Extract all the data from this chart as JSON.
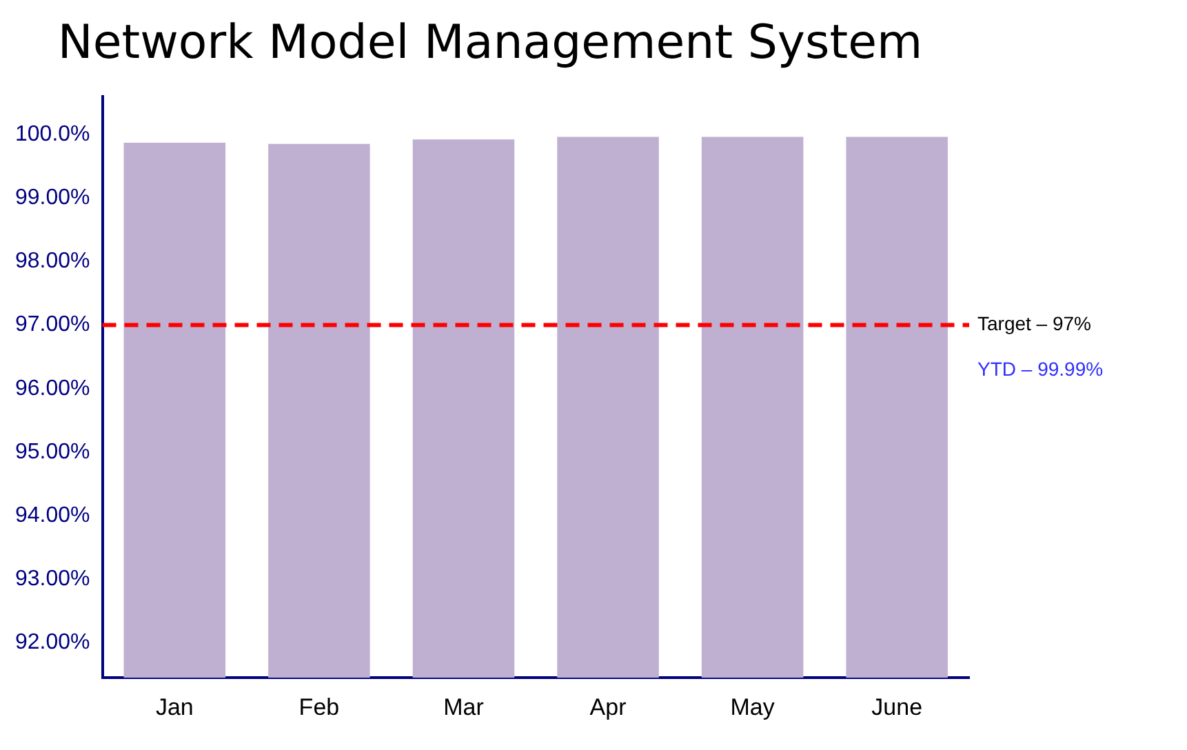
{
  "chart_data": {
    "type": "bar",
    "title": "Network Model Management System",
    "categories": [
      "Jan",
      "Feb",
      "Mar",
      "Apr",
      "May",
      "June"
    ],
    "values": [
      99.87,
      99.85,
      99.92,
      99.96,
      99.96,
      99.96
    ],
    "color": "#bfb0d2",
    "ylim": [
      91.45,
      100.6
    ],
    "yticks": [
      {
        "value": 92,
        "label": "92.00%"
      },
      {
        "value": 93,
        "label": "93.00%"
      },
      {
        "value": 94,
        "label": "94.00%"
      },
      {
        "value": 95,
        "label": "95.00%"
      },
      {
        "value": 96,
        "label": "96.00%"
      },
      {
        "value": 97,
        "label": "97.00%"
      },
      {
        "value": 98,
        "label": "98.00%"
      },
      {
        "value": 99,
        "label": "99.00%"
      },
      {
        "value": 100,
        "label": "100.0%"
      }
    ],
    "ref_lines": [
      {
        "axis": "y",
        "value": 97,
        "label": "Target – 97%",
        "color": "#ff0000",
        "line_style": "dashed"
      }
    ],
    "annotations": [
      "YTD – 99.99%"
    ],
    "grid": false,
    "legend": false
  }
}
